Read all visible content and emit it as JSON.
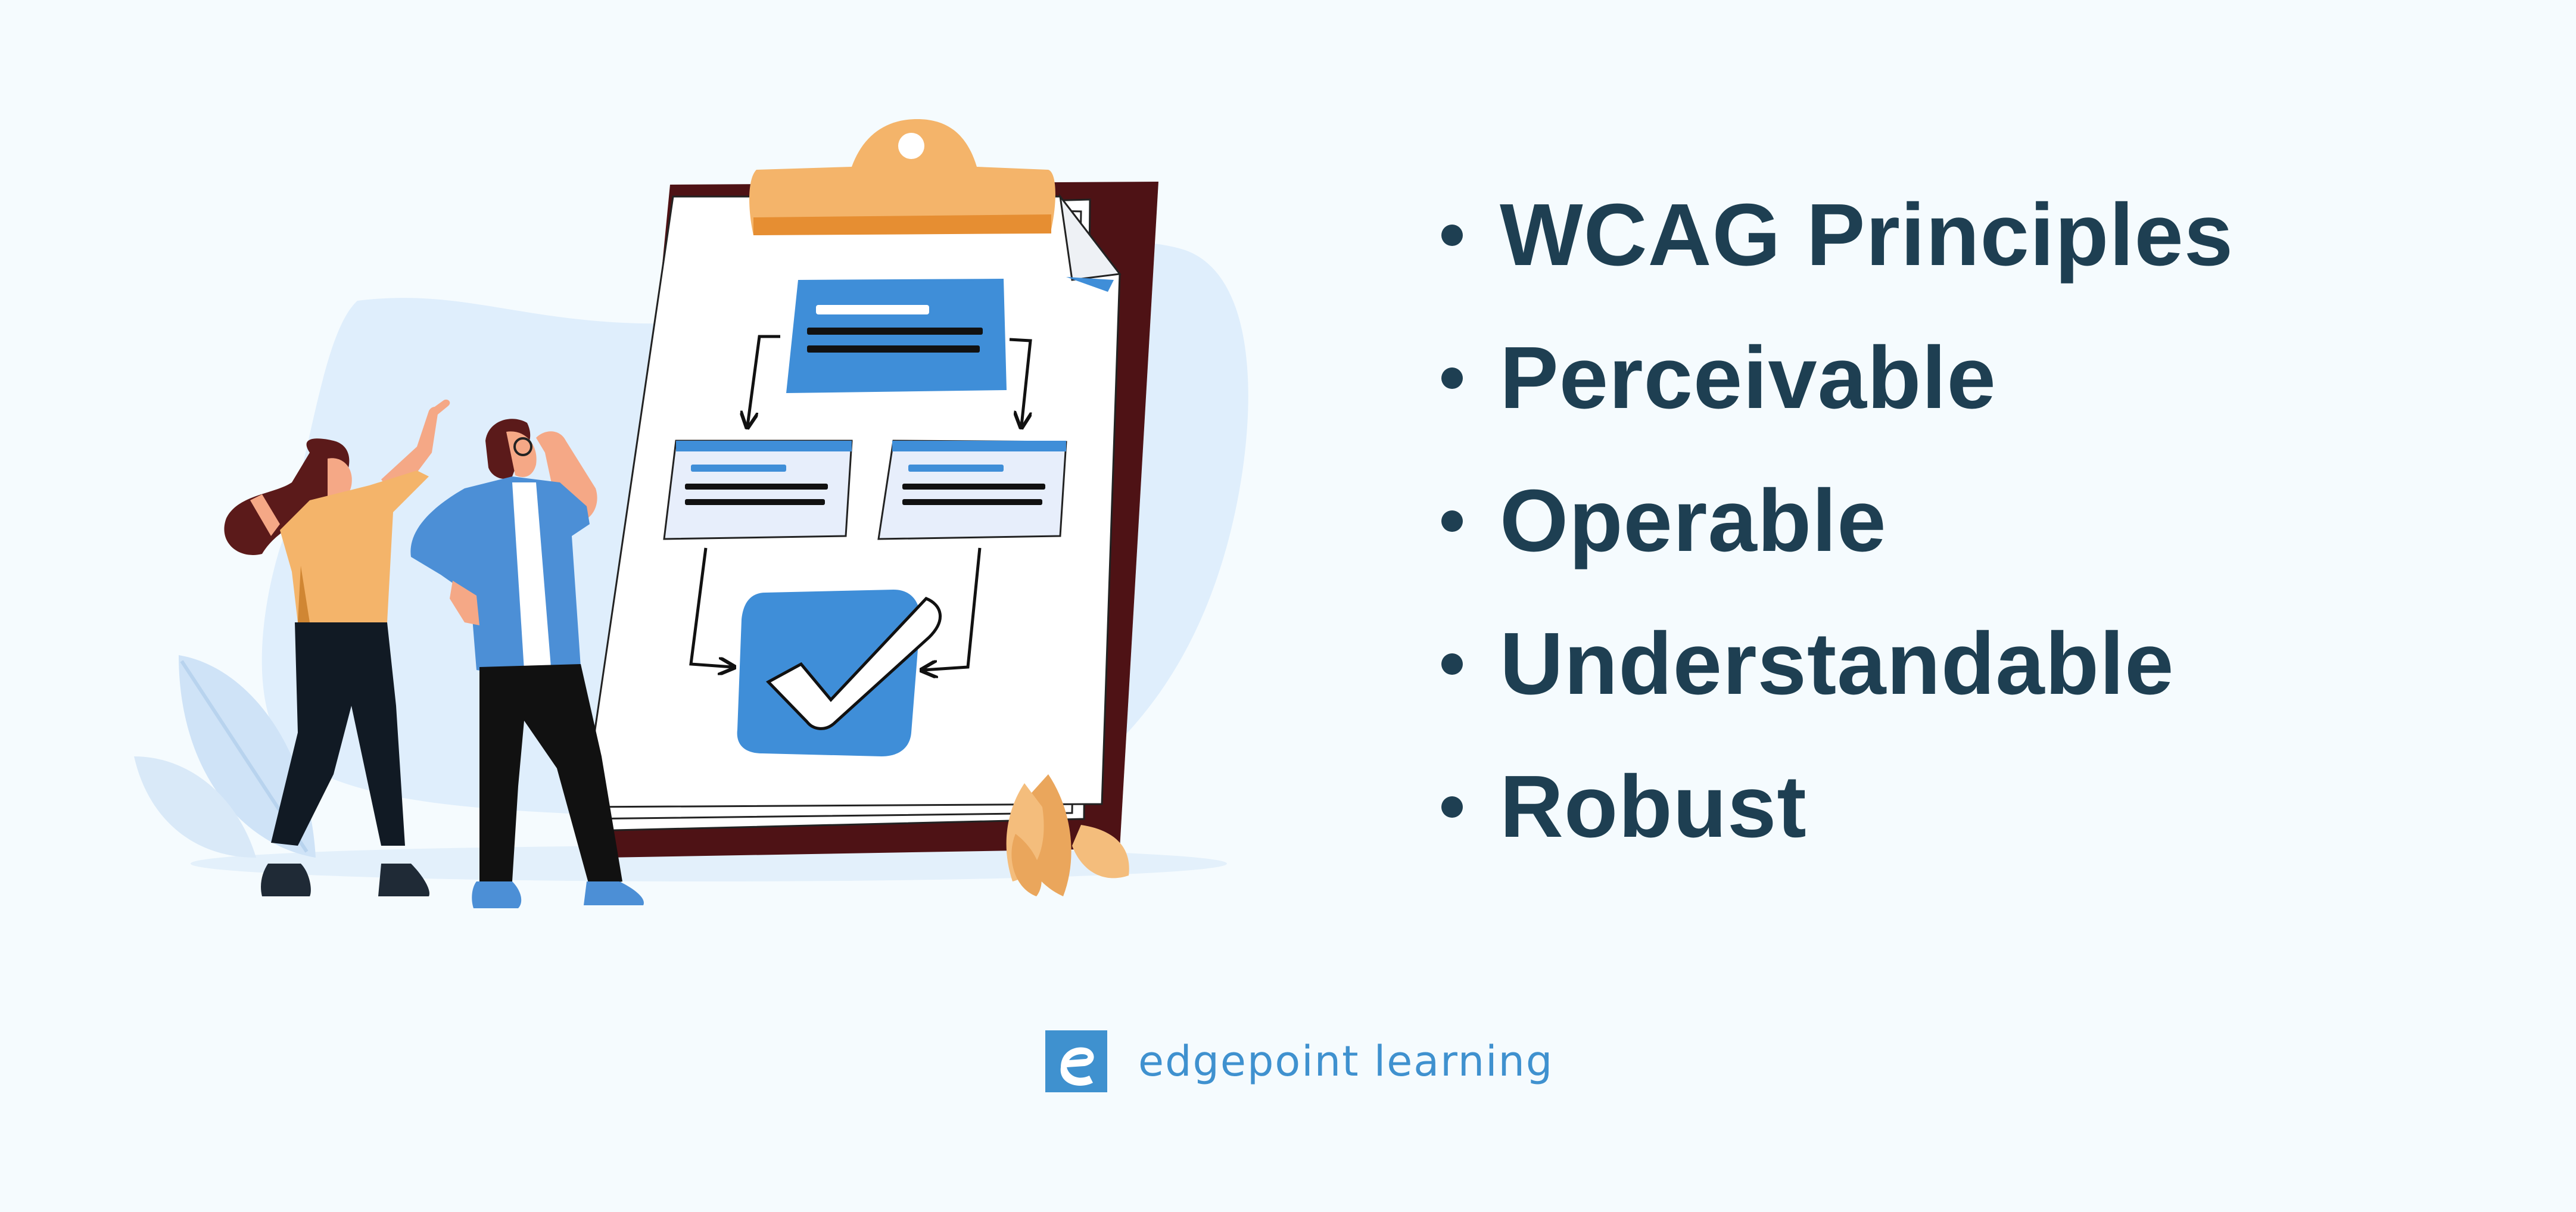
{
  "principles": {
    "items": [
      "WCAG Principles",
      "Perceivable",
      "Operable",
      "Understandable",
      "Robust"
    ]
  },
  "brand": {
    "name": "edgepoint learning",
    "logo_icon": "edgepoint-e-logo-icon",
    "color": "#3f91cf"
  },
  "colors": {
    "background": "#f5fbfe",
    "text": "#1e3f52",
    "accent_blue": "#3f8ed8",
    "clip_orange": "#f4b46a",
    "board_maroon": "#4e1215"
  },
  "illustration": {
    "icons": [
      "clipboard-icon",
      "flowchart-icon",
      "checkmark-icon",
      "woman-figure",
      "man-figure",
      "leaf-decoration"
    ]
  }
}
